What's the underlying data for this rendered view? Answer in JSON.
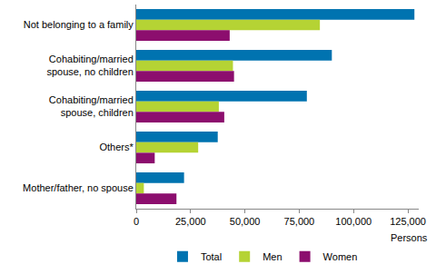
{
  "chart_data": {
    "type": "bar",
    "orientation": "horizontal",
    "grid": false,
    "legend": "bottom",
    "x_label": "Persons",
    "categories": [
      "Not belonging to a family",
      "Cohabiting/married\nspouse, no children",
      "Cohabiting/married\nspouse, children",
      "Others*",
      "Mother/father, no spouse"
    ],
    "series": [
      {
        "name": "Total",
        "color": "#0073b0",
        "values": [
          128000,
          90000,
          78500,
          37500,
          22000
        ]
      },
      {
        "name": "Men",
        "color": "#b5d334",
        "values": [
          84500,
          44500,
          38000,
          28500,
          3500
        ]
      },
      {
        "name": "Women",
        "color": "#8c0e6e",
        "values": [
          43000,
          45000,
          40500,
          8500,
          18500
        ]
      }
    ],
    "xlim": [
      0,
      130000
    ],
    "xticks": [
      0,
      {
        "value": 25000,
        "label": "25,000"
      },
      {
        "value": 50000,
        "label": "50,000"
      },
      {
        "value": 75000,
        "label": "75,000"
      },
      {
        "value": 100000,
        "label": "100,000"
      },
      {
        "value": 125000,
        "label": "125,000"
      }
    ]
  }
}
